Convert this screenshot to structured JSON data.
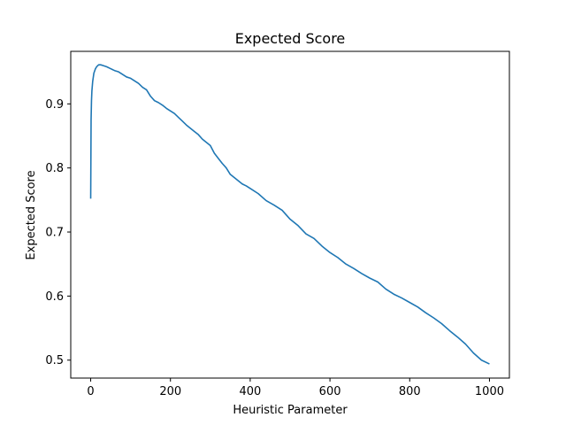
{
  "chart_data": {
    "type": "line",
    "title": "Expected Score",
    "xlabel": "Heuristic Parameter",
    "ylabel": "Expected Score",
    "xlim": [
      -50,
      1050
    ],
    "ylim": [
      0.472,
      0.982
    ],
    "xticks": [
      0,
      200,
      400,
      600,
      800,
      1000
    ],
    "yticks": [
      0.5,
      0.6,
      0.7,
      0.8,
      0.9
    ],
    "grid": false,
    "series": [
      {
        "color": "#1f77b4",
        "x": [
          0,
          1,
          2,
          3,
          5,
          8,
          12,
          15,
          20,
          25,
          30,
          40,
          50,
          60,
          70,
          80,
          90,
          100,
          110,
          120,
          130,
          140,
          150,
          160,
          170,
          180,
          190,
          200,
          210,
          220,
          230,
          240,
          250,
          260,
          270,
          280,
          290,
          300,
          310,
          320,
          330,
          340,
          350,
          360,
          370,
          380,
          390,
          400,
          420,
          440,
          460,
          480,
          500,
          520,
          540,
          560,
          580,
          600,
          620,
          640,
          660,
          680,
          700,
          720,
          740,
          760,
          780,
          800,
          820,
          840,
          860,
          880,
          900,
          920,
          940,
          960,
          980,
          1000
        ],
        "y": [
          0.752,
          0.875,
          0.905,
          0.92,
          0.935,
          0.948,
          0.955,
          0.958,
          0.961,
          0.961,
          0.96,
          0.958,
          0.955,
          0.952,
          0.95,
          0.946,
          0.942,
          0.94,
          0.936,
          0.932,
          0.926,
          0.922,
          0.912,
          0.905,
          0.902,
          0.898,
          0.893,
          0.889,
          0.885,
          0.879,
          0.873,
          0.867,
          0.862,
          0.857,
          0.852,
          0.845,
          0.84,
          0.835,
          0.823,
          0.815,
          0.807,
          0.8,
          0.79,
          0.785,
          0.78,
          0.775,
          0.772,
          0.768,
          0.76,
          0.749,
          0.742,
          0.734,
          0.72,
          0.71,
          0.697,
          0.69,
          0.678,
          0.668,
          0.66,
          0.65,
          0.643,
          0.635,
          0.628,
          0.622,
          0.611,
          0.603,
          0.597,
          0.59,
          0.583,
          0.574,
          0.566,
          0.557,
          0.546,
          0.536,
          0.525,
          0.511,
          0.5,
          0.494
        ]
      }
    ]
  }
}
